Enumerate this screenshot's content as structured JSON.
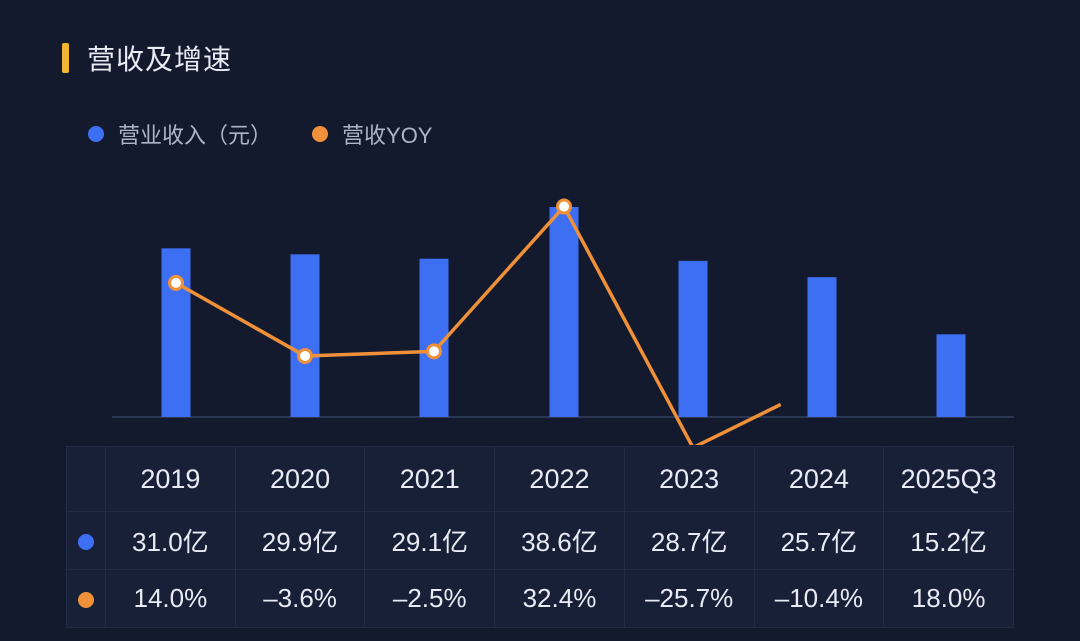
{
  "title": "营收及增速",
  "colors": {
    "bar": "#3d6ff2",
    "line": "#f0913a",
    "accent": "#f2b632"
  },
  "chart_data": {
    "type": "bar+line",
    "categories": [
      "2019",
      "2020",
      "2021",
      "2022",
      "2023",
      "2024",
      "2025Q3"
    ],
    "series": [
      {
        "name": "营业收入（元）",
        "type": "bar",
        "values": [
          31.0,
          29.9,
          29.1,
          38.6,
          28.7,
          25.7,
          15.2
        ],
        "unit": "亿"
      },
      {
        "name": "营收YOY",
        "type": "line",
        "values": [
          14.0,
          -3.6,
          -2.5,
          32.4,
          -25.7,
          -10.4,
          18.0
        ],
        "unit": "%"
      }
    ],
    "table": {
      "header": [
        "2019",
        "2020",
        "2021",
        "2022",
        "2023",
        "2024",
        "2025Q3"
      ],
      "revenue_row": [
        "31.0亿",
        "29.9亿",
        "29.1亿",
        "38.6亿",
        "28.7亿",
        "25.7亿",
        "15.2亿"
      ],
      "yoy_row": [
        "14.0%",
        "–3.6%",
        "–2.5%",
        "32.4%",
        "–25.7%",
        "–10.4%",
        "18.0%"
      ]
    }
  }
}
